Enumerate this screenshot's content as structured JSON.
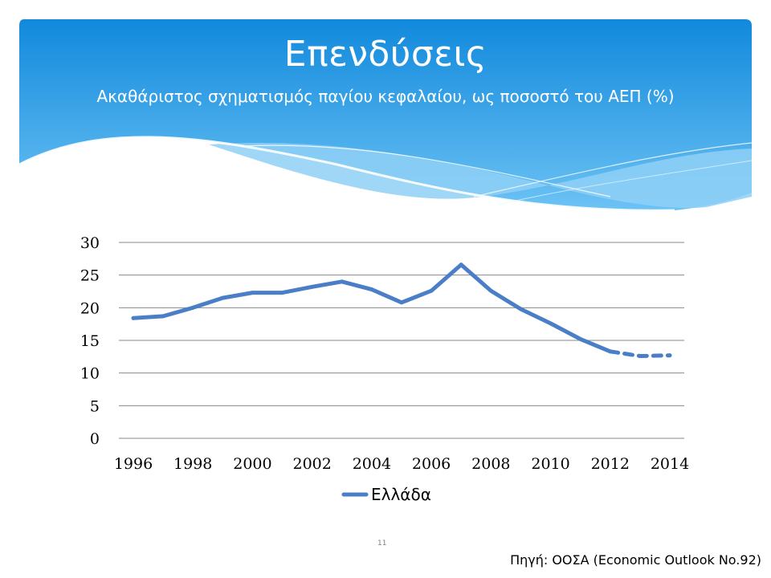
{
  "slide": {
    "title": "Επενδύσεις",
    "subtitle": "Ακαθάριστος σχηματισμός παγίου κεφαλαίου, ως ποσοστό του ΑΕΠ (%)",
    "page_number": "11",
    "source": "Πηγή: ΟΟΣΑ (Economic Outlook No.92)"
  },
  "colors": {
    "header_top": "#1c8fd8",
    "header_bottom": "#5cb8f0",
    "series": "#4a7fc8",
    "gridline": "#8a8a8a"
  },
  "chart_data": {
    "type": "line",
    "title": "",
    "xlabel": "",
    "ylabel": "",
    "ylim": [
      0,
      30
    ],
    "yticks": [
      "0",
      "5",
      "10",
      "15",
      "20",
      "25",
      "30"
    ],
    "xticks": [
      "1996",
      "1998",
      "2000",
      "2002",
      "2004",
      "2006",
      "2008",
      "2010",
      "2012",
      "2014"
    ],
    "grid": true,
    "legend_position": "bottom",
    "x": [
      1996,
      1997,
      1998,
      1999,
      2000,
      2001,
      2002,
      2003,
      2004,
      2005,
      2006,
      2007,
      2008,
      2009,
      2010,
      2011,
      2012,
      2013,
      2014
    ],
    "series": [
      {
        "name": "Ελλάδα",
        "values": [
          18.4,
          18.7,
          20.0,
          21.5,
          22.3,
          22.3,
          23.2,
          24.0,
          22.8,
          20.8,
          22.6,
          26.6,
          22.6,
          19.8,
          17.6,
          15.2,
          13.3,
          12.6,
          12.7
        ],
        "forecast_from": 2012
      }
    ]
  }
}
